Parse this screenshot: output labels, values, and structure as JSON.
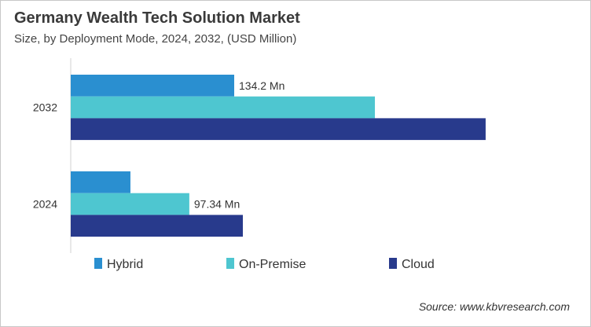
{
  "chart_data": {
    "type": "bar",
    "orientation": "horizontal",
    "title": "Germany Wealth Tech Solution Market",
    "subtitle": "Size, by Deployment Mode, 2024, 2032, (USD Million)",
    "categories": [
      "2032",
      "2024"
    ],
    "series": [
      {
        "name": "Hybrid",
        "color": "#2a8fd0",
        "values": [
          134.2,
          49.0
        ]
      },
      {
        "name": "On-Premise",
        "color": "#4ec6d0",
        "values": [
          249.7,
          97.34
        ]
      },
      {
        "name": "Cloud",
        "color": "#283a8c",
        "values": [
          340.6,
          141.3
        ]
      }
    ],
    "data_labels": [
      {
        "category": "2032",
        "series": "Hybrid",
        "text": "134.2 Mn"
      },
      {
        "category": "2024",
        "series": "On-Premise",
        "text": "97.34 Mn"
      }
    ],
    "xlim": [
      0,
      400
    ],
    "grid": false,
    "legend_position": "bottom",
    "source": "Source: www.kbvresearch.com"
  }
}
